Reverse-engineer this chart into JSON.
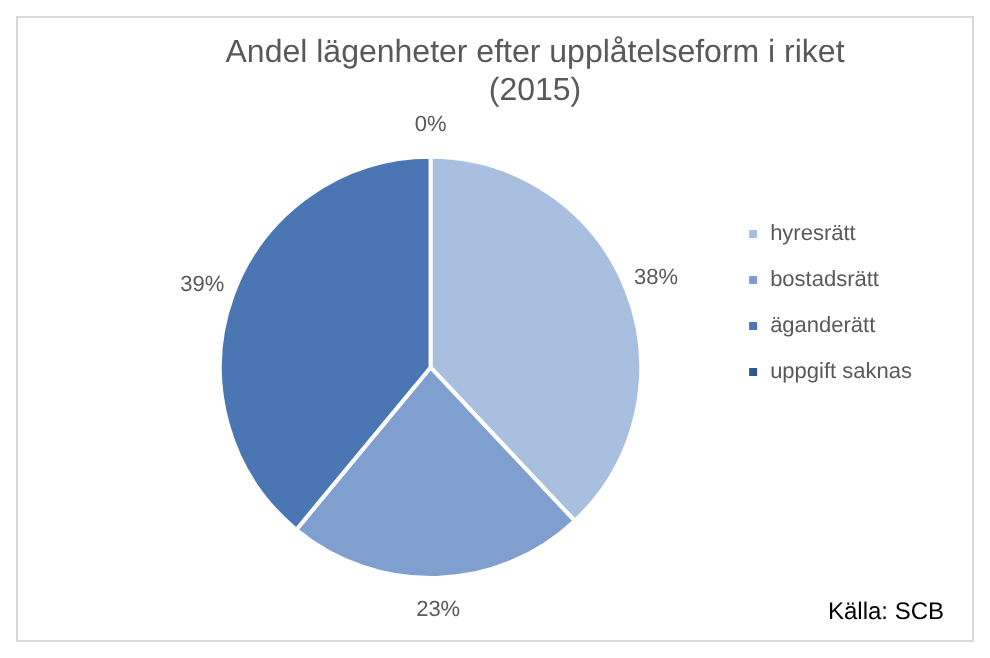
{
  "chart_data": {
    "type": "pie",
    "title": "Andel lägenheter efter upplåtelseform i riket (2015)",
    "categories": [
      "hyresrätt",
      "bostadsrätt",
      "äganderätt",
      "uppgift saknas"
    ],
    "values": [
      38,
      23,
      39,
      0
    ],
    "colors": [
      "#a9bfe0",
      "#7f9fcf",
      "#4a77b4",
      "#2f5597"
    ],
    "value_labels": [
      "38%",
      "23%",
      "39%",
      "0%"
    ],
    "legend": "right",
    "annotations": [
      "Källa: SCB"
    ]
  }
}
